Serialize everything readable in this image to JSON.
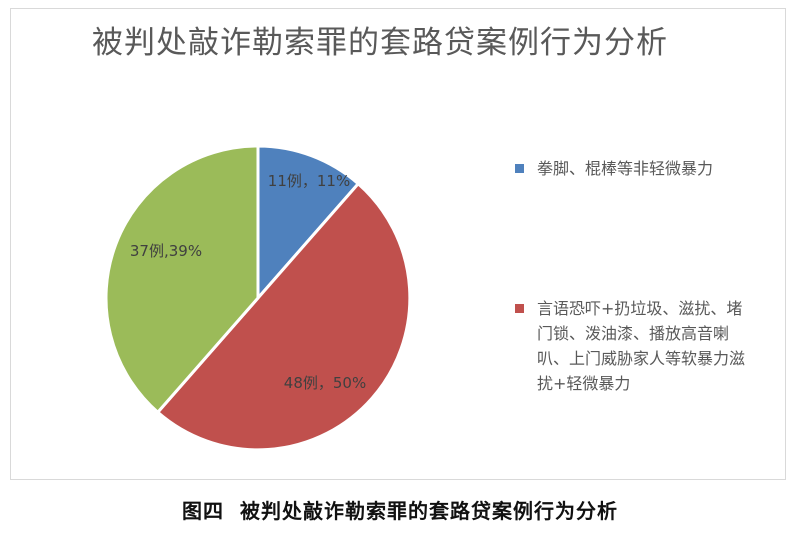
{
  "figure_caption": {
    "label": "图四",
    "text": "被判处敲诈勒索罪的套路贷案例行为分析"
  },
  "chart_data": {
    "type": "pie",
    "title": "被判处敲诈勒索罪的套路贷案例行为分析",
    "slices": [
      {
        "legend": "拳脚、棍棒等非轻微暴力",
        "value": 11,
        "data_label": "11例，11%",
        "color": "#4f81bd"
      },
      {
        "legend": "言语恐吓+扔垃圾、滋扰、堵门锁、泼油漆、播放高音喇叭、上门威胁家人等软暴力滋扰+轻微暴力",
        "value": 48,
        "data_label": "48例，50%",
        "color": "#c0504d"
      },
      {
        "legend": "",
        "value": 37,
        "data_label": "37例,39%",
        "color": "#9bbb59"
      }
    ],
    "start_angle_deg": 0,
    "direction": "clockwise",
    "legend_position": "right"
  }
}
